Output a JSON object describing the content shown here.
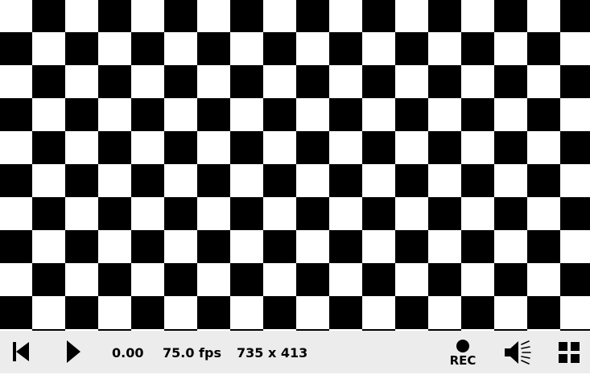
{
  "viewport": {
    "pattern": "checkerboard",
    "colors": {
      "dark": "#000000",
      "light": "#ffffff"
    }
  },
  "controls": {
    "background": "#ececec",
    "rewind": {
      "icon": "rewind-icon"
    },
    "play": {
      "icon": "play-icon"
    },
    "time": "0.00",
    "fps": "75.0 fps",
    "resolution": "735 x 413",
    "record": {
      "icon": "record-icon",
      "label": "REC"
    },
    "volume": {
      "icon": "volume-icon"
    },
    "fullscreen": {
      "icon": "fullscreen-icon"
    }
  }
}
